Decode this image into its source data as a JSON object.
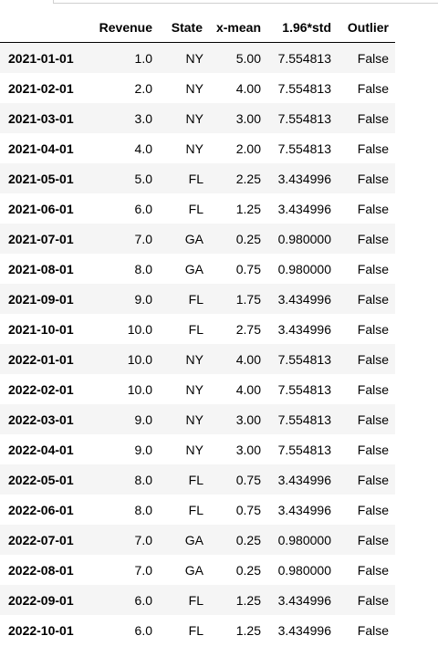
{
  "table": {
    "index_header": "",
    "columns": [
      "Revenue",
      "State",
      "x-mean",
      "1.96*std",
      "Outlier"
    ],
    "rows": [
      {
        "index": "2021-01-01",
        "cells": [
          "1.0",
          "NY",
          "5.00",
          "7.554813",
          "False"
        ]
      },
      {
        "index": "2021-02-01",
        "cells": [
          "2.0",
          "NY",
          "4.00",
          "7.554813",
          "False"
        ]
      },
      {
        "index": "2021-03-01",
        "cells": [
          "3.0",
          "NY",
          "3.00",
          "7.554813",
          "False"
        ]
      },
      {
        "index": "2021-04-01",
        "cells": [
          "4.0",
          "NY",
          "2.00",
          "7.554813",
          "False"
        ]
      },
      {
        "index": "2021-05-01",
        "cells": [
          "5.0",
          "FL",
          "2.25",
          "3.434996",
          "False"
        ]
      },
      {
        "index": "2021-06-01",
        "cells": [
          "6.0",
          "FL",
          "1.25",
          "3.434996",
          "False"
        ]
      },
      {
        "index": "2021-07-01",
        "cells": [
          "7.0",
          "GA",
          "0.25",
          "0.980000",
          "False"
        ]
      },
      {
        "index": "2021-08-01",
        "cells": [
          "8.0",
          "GA",
          "0.75",
          "0.980000",
          "False"
        ]
      },
      {
        "index": "2021-09-01",
        "cells": [
          "9.0",
          "FL",
          "1.75",
          "3.434996",
          "False"
        ]
      },
      {
        "index": "2021-10-01",
        "cells": [
          "10.0",
          "FL",
          "2.75",
          "3.434996",
          "False"
        ]
      },
      {
        "index": "2022-01-01",
        "cells": [
          "10.0",
          "NY",
          "4.00",
          "7.554813",
          "False"
        ]
      },
      {
        "index": "2022-02-01",
        "cells": [
          "10.0",
          "NY",
          "4.00",
          "7.554813",
          "False"
        ]
      },
      {
        "index": "2022-03-01",
        "cells": [
          "9.0",
          "NY",
          "3.00",
          "7.554813",
          "False"
        ]
      },
      {
        "index": "2022-04-01",
        "cells": [
          "9.0",
          "NY",
          "3.00",
          "7.554813",
          "False"
        ]
      },
      {
        "index": "2022-05-01",
        "cells": [
          "8.0",
          "FL",
          "0.75",
          "3.434996",
          "False"
        ]
      },
      {
        "index": "2022-06-01",
        "cells": [
          "8.0",
          "FL",
          "0.75",
          "3.434996",
          "False"
        ]
      },
      {
        "index": "2022-07-01",
        "cells": [
          "7.0",
          "GA",
          "0.25",
          "0.980000",
          "False"
        ]
      },
      {
        "index": "2022-08-01",
        "cells": [
          "7.0",
          "GA",
          "0.25",
          "0.980000",
          "False"
        ]
      },
      {
        "index": "2022-09-01",
        "cells": [
          "6.0",
          "FL",
          "1.25",
          "3.434996",
          "False"
        ]
      },
      {
        "index": "2022-10-01",
        "cells": [
          "6.0",
          "FL",
          "1.25",
          "3.434996",
          "False"
        ]
      }
    ]
  }
}
